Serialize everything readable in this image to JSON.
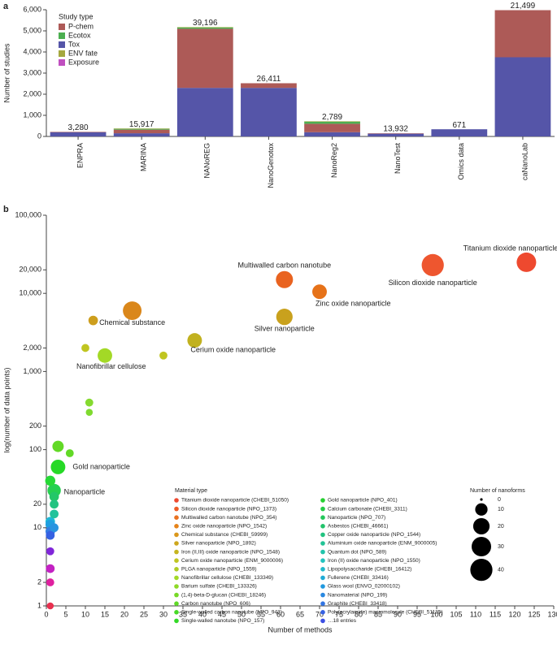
{
  "chart_data": [
    {
      "type": "bar",
      "panel": "a",
      "y_label": "Number of studies",
      "categories": [
        "ENPRA",
        "MARINA",
        "NANoREG",
        "NanoGenotox",
        "NanoReg2",
        "NanoTest",
        "Omics data",
        "caNanoLab"
      ],
      "legend_title": "Study type",
      "series": [
        {
          "name": "P-chem",
          "color": "#ad5a57",
          "values": [
            20,
            170,
            2800,
            220,
            400,
            20,
            0,
            2230
          ]
        },
        {
          "name": "Ecotox",
          "color": "#4caf50",
          "values": [
            0,
            40,
            60,
            0,
            100,
            0,
            0,
            0
          ]
        },
        {
          "name": "Tox",
          "color": "#5555a8",
          "values": [
            200,
            150,
            2300,
            2300,
            200,
            130,
            340,
            3750
          ]
        },
        {
          "name": "ENV fate",
          "color": "#a5a83f",
          "values": [
            0,
            20,
            20,
            0,
            20,
            0,
            0,
            0
          ]
        },
        {
          "name": "Exposure",
          "color": "#c04fc0",
          "values": [
            0,
            0,
            0,
            0,
            0,
            0,
            0,
            0
          ]
        }
      ],
      "top_labels": [
        "3,280",
        "15,917",
        "39,196",
        "26,411",
        "2,789",
        "13,932",
        "671",
        "21,499"
      ],
      "ylim": [
        0,
        6000
      ],
      "yticks": [
        0,
        {
          "value": 1000,
          "label": "1,000"
        },
        {
          "value": 2000,
          "label": "2,000"
        },
        {
          "value": 3000,
          "label": "3,000"
        },
        {
          "value": 4000,
          "label": "4,000"
        },
        {
          "value": 5000,
          "label": "5,000"
        },
        {
          "value": 6000,
          "label": "6,000"
        }
      ]
    },
    {
      "type": "scatter",
      "panel": "b",
      "x_label": "Number of methods",
      "y_label": "log(number of data points)",
      "log_y": true,
      "x": [
        123,
        99,
        61,
        70,
        22,
        61,
        12,
        38,
        10,
        30,
        15,
        11,
        11,
        3,
        6,
        3,
        2,
        1,
        2,
        2,
        2,
        1,
        1,
        2,
        1,
        1,
        1,
        1,
        1,
        1
      ],
      "values": [
        25000,
        23000,
        15000,
        10500,
        6000,
        5000,
        4500,
        2500,
        2000,
        1600,
        1600,
        400,
        300,
        110,
        90,
        60,
        30,
        40,
        25,
        20,
        15,
        12,
        11,
        10,
        9,
        8,
        5,
        3,
        2,
        1
      ],
      "sizes": [
        30,
        40,
        22,
        15,
        27,
        20,
        5,
        15,
        3,
        3,
        15,
        3,
        2,
        8,
        3,
        15,
        12,
        6,
        5,
        4,
        4,
        5,
        5,
        4,
        5,
        4,
        3,
        4,
        3,
        2
      ],
      "colors": [
        "hsl(8,85%,56%)",
        "hsl(12,85%,56%)",
        "hsl(20,82%,52%)",
        "hsl(26,80%,50%)",
        "hsl(34,78%,48%)",
        "hsl(46,75%,45%)",
        "hsl(44,75%,46%)",
        "hsl(54,72%,44%)",
        "hsl(62,72%,45%)",
        "hsl(62,72%,45%)",
        "hsl(78,70%,50%)",
        "hsl(90,70%,52%)",
        "hsl(92,70%,52%)",
        "hsl(100,70%,50%)",
        "hsl(100,70%,50%)",
        "hsl(120,70%,50%)",
        "hsl(135,70%,48%)",
        "hsl(125,70%,50%)",
        "hsl(145,70%,46%)",
        "hsl(155,70%,45%)",
        "hsl(165,70%,45%)",
        "hsl(190,75%,48%)",
        "hsl(200,75%,50%)",
        "hsl(205,75%,52%)",
        "hsl(215,75%,55%)",
        "hsl(225,75%,55%)",
        "hsl(270,70%,50%)",
        "hsl(300,70%,45%)",
        "hsl(320,75%,50%)",
        "hsl(350,80%,55%)"
      ],
      "labels": [
        "Titanium dioxide nanoparticle",
        "Silicon dioxide nanoparticle",
        "Multiwalled carbon nanotube",
        "Zinc oxide nanoparticle",
        "Chemical substance",
        "Silver nanoparticle",
        null,
        "Cerium oxide nanoparticle",
        null,
        null,
        "Nanofibrillar cellulose",
        null,
        null,
        null,
        null,
        "Gold nanoparticle",
        "Nanoparticle",
        null,
        null,
        null,
        null,
        null,
        null,
        null,
        null,
        null,
        null,
        null,
        null,
        null
      ],
      "xlim": [
        0,
        130
      ],
      "xticks": [
        0,
        5,
        10,
        15,
        20,
        25,
        30,
        35,
        40,
        45,
        50,
        55,
        60,
        65,
        70,
        75,
        80,
        85,
        90,
        95,
        100,
        105,
        110,
        115,
        120,
        125,
        130
      ],
      "ylim": [
        1,
        100000
      ],
      "yticks": [
        1,
        2,
        10,
        20,
        100,
        200,
        {
          "value": 1000,
          "label": "1,000"
        },
        {
          "value": 2000,
          "label": "2,000"
        },
        {
          "value": 10000,
          "label": "10,000"
        },
        {
          "value": 20000,
          "label": "20,000"
        },
        {
          "value": 100000,
          "label": "100,000"
        }
      ],
      "legend_title": "Material type",
      "material_types": [
        {
          "name": "Titanium dioxide nanoparticle (CHEBI_51050)",
          "color": "hsl(8,85%,56%)"
        },
        {
          "name": "Silicon dioxide nanoparticle (NPO_1373)",
          "color": "hsl(16,85%,54%)"
        },
        {
          "name": "Multiwalled carbon nanotube (NPO_354)",
          "color": "hsl(24,82%,52%)"
        },
        {
          "name": "Zinc oxide nanoparticle (NPO_1542)",
          "color": "hsl(31,80%,50%)"
        },
        {
          "name": "Chemical substance (CHEBI_59999)",
          "color": "hsl(39,78%,48%)"
        },
        {
          "name": "Silver nanoparticle (NPO_1892)",
          "color": "hsl(47,75%,46%)"
        },
        {
          "name": "Iron (II,III) oxide nanoparticle (NPO_1548)",
          "color": "hsl(54,72%,45%)"
        },
        {
          "name": "Cerium oxide nanoparticle (ENM_9000006)",
          "color": "hsl(62,72%,45%)"
        },
        {
          "name": "PLGA nanoparticle (NPO_1559)",
          "color": "hsl(70,70%,47%)"
        },
        {
          "name": "Nanofibrillar cellulose (CHEBI_133349)",
          "color": "hsl(78,70%,50%)"
        },
        {
          "name": "Barium sulfate (CHEBI_133326)",
          "color": "hsl(85,70%,50%)"
        },
        {
          "name": "(1,4)-beta-D-glucan (CHEBI_18246)",
          "color": "hsl(93,70%,50%)"
        },
        {
          "name": "Carbon nanotube (NPO_606)",
          "color": "hsl(101,70%,50%)"
        },
        {
          "name": "Single-walled carbon nanotube (NPO_943)",
          "color": "hsl(109,70%,50%)"
        },
        {
          "name": "Single-walled nanotube (NPO_157)",
          "color": "hsl(116,70%,50%)"
        },
        {
          "name": "Gold nanoparticle (NPO_401)",
          "color": "hsl(124,70%,48%)"
        },
        {
          "name": "Calcium carbonate (CHEBI_3311)",
          "color": "hsl(132,70%,47%)"
        },
        {
          "name": "Nanoparticle (NPO_707)",
          "color": "hsl(140,70%,46%)"
        },
        {
          "name": "Asbestos (CHEBI_46661)",
          "color": "hsl(147,70%,45%)"
        },
        {
          "name": "Copper oxide nanoparticle (NPO_1544)",
          "color": "hsl(155,70%,45%)"
        },
        {
          "name": "Aluminium oxide nanoparticle (ENM_9000005)",
          "color": "hsl(163,70%,45%)"
        },
        {
          "name": "Quantum dot (NPO_589)",
          "color": "hsl(171,70%,45%)"
        },
        {
          "name": "Iron (II) oxide nanoparticle (NPO_1550)",
          "color": "hsl(178,70%,45%)"
        },
        {
          "name": "Lipopolysaccharide (CHEBI_16412)",
          "color": "hsl(186,72%,46%)"
        },
        {
          "name": "Fullerene (CHEBI_33416)",
          "color": "hsl(194,75%,48%)"
        },
        {
          "name": "Glass wool (ENVO_02000102)",
          "color": "hsl(202,75%,50%)"
        },
        {
          "name": "Nanomaterial (NPO_199)",
          "color": "hsl(209,75%,52%)"
        },
        {
          "name": "Graphite (CHEBI_33418)",
          "color": "hsl(217,75%,54%)"
        },
        {
          "name": "Poly(acrylamide) macromolecule (CHEBI_51135)",
          "color": "hsl(225,75%,55%)"
        },
        {
          "name": "…18 entries",
          "color": "hsl(233,75%,56%)"
        }
      ],
      "size_legend_title": "Number of nanoforms",
      "size_legend_values": [
        0,
        10,
        20,
        30,
        40
      ]
    }
  ]
}
